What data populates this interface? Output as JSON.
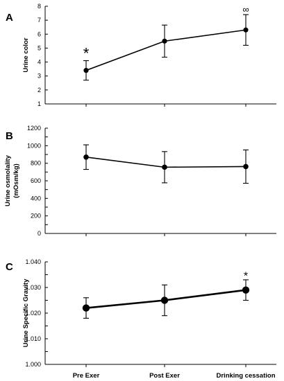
{
  "chart_data": [
    {
      "type": "line",
      "panel_label": "A",
      "ylabel": "Urine color",
      "ylim": [
        1,
        8
      ],
      "yticks": [
        1,
        2,
        3,
        4,
        5,
        6,
        7,
        8
      ],
      "ytick_labels": [
        "1",
        "2",
        "3",
        "4",
        "5",
        "6",
        "7",
        "8"
      ],
      "categories": [
        "Pre Exer",
        "Post Exer",
        "Drinking cessation"
      ],
      "series": [
        {
          "values": [
            3.4,
            5.5,
            6.3
          ],
          "error": [
            0.7,
            1.15,
            1.1
          ]
        }
      ],
      "annotations": [
        {
          "category_index": 0,
          "text": "*",
          "at_value": 4.75,
          "size": 22
        },
        {
          "category_index": 2,
          "text": "∞",
          "at_value": 7.85,
          "size": 13
        }
      ],
      "grid": false,
      "show_x_tick_labels": false
    },
    {
      "type": "line",
      "panel_label": "B",
      "ylabel": [
        "Urine osmolality",
        "(mOsm/kg)"
      ],
      "ylim": [
        0,
        1200
      ],
      "yticks": [
        0,
        100,
        200,
        300,
        400,
        500,
        600,
        700,
        800,
        900,
        1000,
        1100,
        1200
      ],
      "ytick_labels": [
        "0",
        "",
        "200",
        "",
        "400",
        "",
        "600",
        "",
        "800",
        "",
        "1000",
        "",
        "1200"
      ],
      "categories": [
        "Pre Exer",
        "Post Exer",
        "Drinking cessation"
      ],
      "series": [
        {
          "values": [
            870,
            755,
            762
          ],
          "error": [
            140,
            178,
            190
          ]
        }
      ],
      "annotations": [],
      "grid": false,
      "show_x_tick_labels": false
    },
    {
      "type": "line",
      "panel_label": "C",
      "ylabel": "Urine  Specific Gravity",
      "ylim": [
        1.0,
        1.04
      ],
      "yticks": [
        1.0,
        1.005,
        1.01,
        1.015,
        1.02,
        1.025,
        1.03,
        1.035,
        1.04
      ],
      "ytick_labels": [
        "1.000",
        "",
        "1.010",
        "",
        "1.020",
        "",
        "1.030",
        "",
        "1.040"
      ],
      "categories": [
        "Pre Exer",
        "Post Exer",
        "Drinking cessation"
      ],
      "series": [
        {
          "values": [
            1.022,
            1.025,
            1.029
          ],
          "error": [
            0.004,
            0.006,
            0.004
          ]
        }
      ],
      "annotations": [
        {
          "category_index": 2,
          "text": "*",
          "at_value": 1.035,
          "size": 16
        }
      ],
      "grid": false,
      "show_x_tick_labels": true
    }
  ]
}
